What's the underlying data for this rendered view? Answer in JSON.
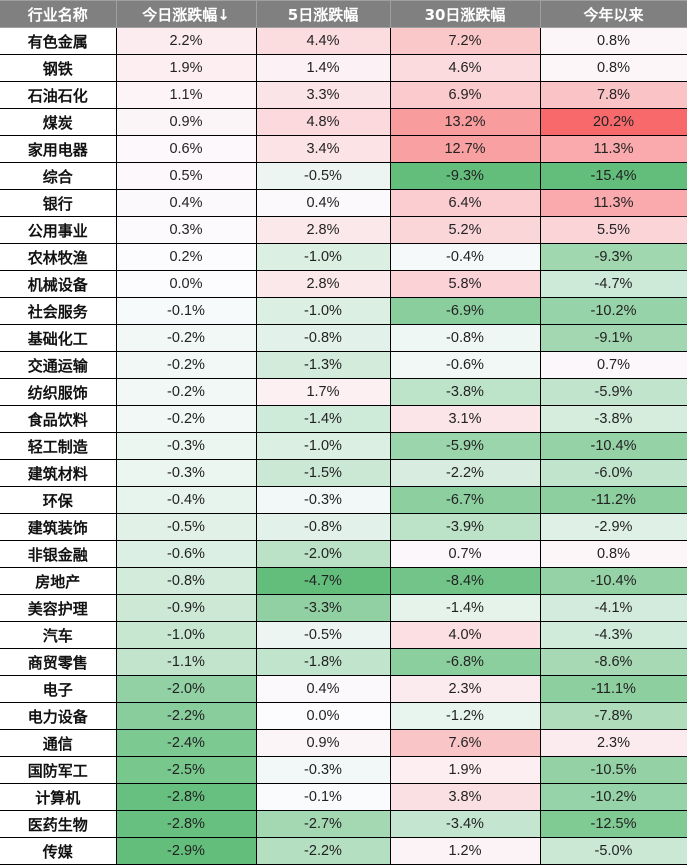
{
  "chart_data": {
    "type": "table",
    "title": "",
    "columns": [
      "行业名称",
      "今日涨跌幅↓",
      "5日涨跌幅",
      "30日涨跌幅",
      "今年以来"
    ],
    "sort": {
      "column": "今日涨跌幅",
      "order": "desc"
    },
    "colors": {
      "header_bg": "#808080",
      "header_text": "#ffffff",
      "positive_max": "#f8696b",
      "negative_max": "#63be7b",
      "neutral": "#fcfcff"
    },
    "rows": [
      {
        "name": "有色金属",
        "d1": "2.2%",
        "d5": "4.4%",
        "d30": "7.2%",
        "ytd": "0.8%"
      },
      {
        "name": "钢铁",
        "d1": "1.9%",
        "d5": "1.4%",
        "d30": "4.6%",
        "ytd": "0.8%"
      },
      {
        "name": "石油石化",
        "d1": "1.1%",
        "d5": "3.3%",
        "d30": "6.9%",
        "ytd": "7.8%"
      },
      {
        "name": "煤炭",
        "d1": "0.9%",
        "d5": "4.8%",
        "d30": "13.2%",
        "ytd": "20.2%"
      },
      {
        "name": "家用电器",
        "d1": "0.6%",
        "d5": "3.4%",
        "d30": "12.7%",
        "ytd": "11.3%"
      },
      {
        "name": "综合",
        "d1": "0.5%",
        "d5": "-0.5%",
        "d30": "-9.3%",
        "ytd": "-15.4%"
      },
      {
        "name": "银行",
        "d1": "0.4%",
        "d5": "0.4%",
        "d30": "6.4%",
        "ytd": "11.3%"
      },
      {
        "name": "公用事业",
        "d1": "0.3%",
        "d5": "2.8%",
        "d30": "5.2%",
        "ytd": "5.5%"
      },
      {
        "name": "农林牧渔",
        "d1": "0.2%",
        "d5": "-1.0%",
        "d30": "-0.4%",
        "ytd": "-9.3%"
      },
      {
        "name": "机械设备",
        "d1": "0.0%",
        "d5": "2.8%",
        "d30": "5.8%",
        "ytd": "-4.7%"
      },
      {
        "name": "社会服务",
        "d1": "-0.1%",
        "d5": "-1.0%",
        "d30": "-6.9%",
        "ytd": "-10.2%"
      },
      {
        "name": "基础化工",
        "d1": "-0.2%",
        "d5": "-0.8%",
        "d30": "-0.8%",
        "ytd": "-9.1%"
      },
      {
        "name": "交通运输",
        "d1": "-0.2%",
        "d5": "-1.3%",
        "d30": "-0.6%",
        "ytd": "0.7%"
      },
      {
        "name": "纺织服饰",
        "d1": "-0.2%",
        "d5": "1.7%",
        "d30": "-3.8%",
        "ytd": "-5.9%"
      },
      {
        "name": "食品饮料",
        "d1": "-0.2%",
        "d5": "-1.4%",
        "d30": "3.1%",
        "ytd": "-3.8%"
      },
      {
        "name": "轻工制造",
        "d1": "-0.3%",
        "d5": "-1.0%",
        "d30": "-5.9%",
        "ytd": "-10.4%"
      },
      {
        "name": "建筑材料",
        "d1": "-0.3%",
        "d5": "-1.5%",
        "d30": "-2.2%",
        "ytd": "-6.0%"
      },
      {
        "name": "环保",
        "d1": "-0.4%",
        "d5": "-0.3%",
        "d30": "-6.7%",
        "ytd": "-11.2%"
      },
      {
        "name": "建筑装饰",
        "d1": "-0.5%",
        "d5": "-0.8%",
        "d30": "-3.9%",
        "ytd": "-2.9%"
      },
      {
        "name": "非银金融",
        "d1": "-0.6%",
        "d5": "-2.0%",
        "d30": "0.7%",
        "ytd": "0.8%"
      },
      {
        "name": "房地产",
        "d1": "-0.8%",
        "d5": "-4.7%",
        "d30": "-8.4%",
        "ytd": "-10.4%"
      },
      {
        "name": "美容护理",
        "d1": "-0.9%",
        "d5": "-3.3%",
        "d30": "-1.4%",
        "ytd": "-4.1%"
      },
      {
        "name": "汽车",
        "d1": "-1.0%",
        "d5": "-0.5%",
        "d30": "4.0%",
        "ytd": "-4.3%"
      },
      {
        "name": "商贸零售",
        "d1": "-1.1%",
        "d5": "-1.8%",
        "d30": "-6.8%",
        "ytd": "-8.6%"
      },
      {
        "name": "电子",
        "d1": "-2.0%",
        "d5": "0.4%",
        "d30": "2.3%",
        "ytd": "-11.1%"
      },
      {
        "name": "电力设备",
        "d1": "-2.2%",
        "d5": "0.0%",
        "d30": "-1.2%",
        "ytd": "-7.8%"
      },
      {
        "name": "通信",
        "d1": "-2.4%",
        "d5": "0.9%",
        "d30": "7.6%",
        "ytd": "2.3%"
      },
      {
        "name": "国防军工",
        "d1": "-2.5%",
        "d5": "-0.3%",
        "d30": "1.9%",
        "ytd": "-10.5%"
      },
      {
        "name": "计算机",
        "d1": "-2.8%",
        "d5": "-0.1%",
        "d30": "3.8%",
        "ytd": "-10.2%"
      },
      {
        "name": "医药生物",
        "d1": "-2.8%",
        "d5": "-2.7%",
        "d30": "-3.4%",
        "ytd": "-12.5%"
      },
      {
        "name": "传媒",
        "d1": "-2.9%",
        "d5": "-2.2%",
        "d30": "1.2%",
        "ytd": "-5.0%"
      }
    ]
  }
}
